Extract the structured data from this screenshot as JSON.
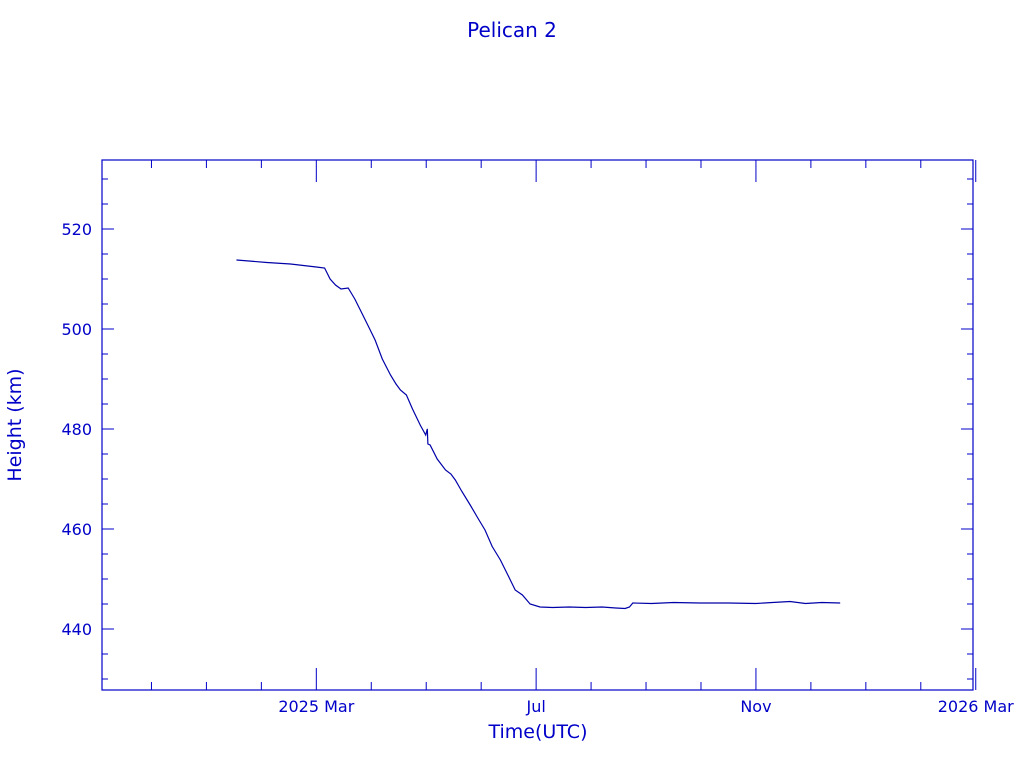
{
  "chart_data": {
    "type": "line",
    "title": "Pelican 2",
    "xlabel": "Time(UTC)",
    "ylabel": "Height (km)",
    "x_units": "months since 2025 Mar",
    "xlim": [
      -3.9,
      11.95
    ],
    "ylim": [
      427.8,
      533.8
    ],
    "x_ticks": [
      {
        "value": 0,
        "label": "2025 Mar"
      },
      {
        "value": 4,
        "label": "Jul"
      },
      {
        "value": 8,
        "label": "Nov"
      },
      {
        "value": 12,
        "label": "2026 Mar"
      }
    ],
    "x_minor_step": 1,
    "y_ticks": [
      440,
      460,
      480,
      500,
      520
    ],
    "y_minor_step": 5,
    "grid": false,
    "colors": {
      "axis": "#0000c8",
      "line": "#0000a8",
      "text": "#0000c8"
    },
    "series": [
      {
        "name": "Height",
        "points": [
          [
            -1.45,
            513.8
          ],
          [
            -0.9,
            513.3
          ],
          [
            -0.47,
            513.0
          ],
          [
            0.0,
            512.4
          ],
          [
            0.15,
            512.2
          ],
          [
            0.25,
            510.0
          ],
          [
            0.35,
            508.8
          ],
          [
            0.45,
            508.0
          ],
          [
            0.58,
            508.2
          ],
          [
            0.7,
            506.0
          ],
          [
            0.8,
            503.8
          ],
          [
            0.95,
            500.5
          ],
          [
            1.07,
            497.8
          ],
          [
            1.2,
            494.0
          ],
          [
            1.35,
            490.8
          ],
          [
            1.45,
            489.0
          ],
          [
            1.53,
            487.8
          ],
          [
            1.64,
            486.8
          ],
          [
            1.75,
            484.0
          ],
          [
            1.89,
            480.8
          ],
          [
            1.99,
            478.8
          ],
          [
            2.02,
            480.0
          ],
          [
            2.03,
            477.0
          ],
          [
            2.07,
            476.8
          ],
          [
            2.2,
            474.0
          ],
          [
            2.35,
            471.8
          ],
          [
            2.45,
            471.0
          ],
          [
            2.53,
            469.8
          ],
          [
            2.65,
            467.5
          ],
          [
            2.8,
            464.8
          ],
          [
            2.95,
            462.0
          ],
          [
            3.07,
            459.8
          ],
          [
            3.2,
            456.5
          ],
          [
            3.35,
            453.8
          ],
          [
            3.5,
            450.5
          ],
          [
            3.62,
            447.8
          ],
          [
            3.75,
            446.8
          ],
          [
            3.89,
            445.0
          ],
          [
            4.07,
            444.4
          ],
          [
            4.3,
            444.3
          ],
          [
            4.6,
            444.4
          ],
          [
            4.9,
            444.3
          ],
          [
            5.2,
            444.4
          ],
          [
            5.45,
            444.2
          ],
          [
            5.62,
            444.1
          ],
          [
            5.7,
            444.4
          ],
          [
            5.76,
            445.2
          ],
          [
            6.1,
            445.1
          ],
          [
            6.5,
            445.3
          ],
          [
            6.98,
            445.2
          ],
          [
            7.5,
            445.2
          ],
          [
            8.0,
            445.1
          ],
          [
            8.3,
            445.3
          ],
          [
            8.62,
            445.5
          ],
          [
            8.9,
            445.1
          ],
          [
            9.2,
            445.3
          ],
          [
            9.53,
            445.2
          ]
        ]
      }
    ]
  }
}
